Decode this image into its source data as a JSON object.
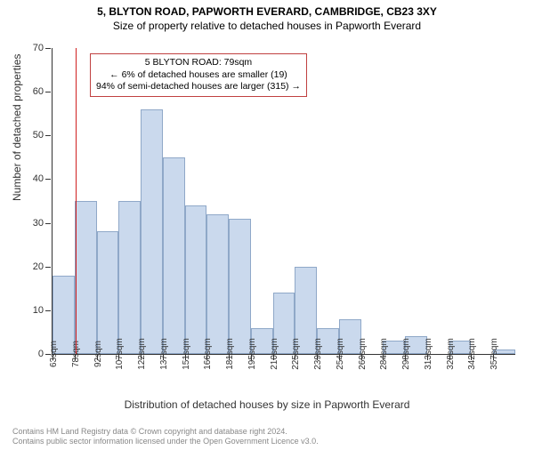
{
  "title_main": "5, BLYTON ROAD, PAPWORTH EVERARD, CAMBRIDGE, CB23 3XY",
  "title_sub": "Size of property relative to detached houses in Papworth Everard",
  "chart": {
    "type": "histogram",
    "ylabel": "Number of detached properties",
    "xlabel": "Distribution of detached houses by size in Papworth Everard",
    "y_ticks": [
      0,
      10,
      20,
      30,
      40,
      50,
      60,
      70
    ],
    "y_max": 70,
    "x_labels": [
      "63sqm",
      "78sqm",
      "92sqm",
      "107sqm",
      "122sqm",
      "137sqm",
      "151sqm",
      "166sqm",
      "181sqm",
      "195sqm",
      "210sqm",
      "225sqm",
      "239sqm",
      "254sqm",
      "269sqm",
      "284sqm",
      "298sqm",
      "313sqm",
      "328sqm",
      "342sqm",
      "357sqm"
    ],
    "values": [
      18,
      35,
      28,
      35,
      56,
      45,
      34,
      32,
      31,
      6,
      14,
      20,
      6,
      8,
      0,
      3,
      4,
      0,
      3,
      0,
      1
    ],
    "bar_fill": "#cad9ed",
    "bar_stroke": "#8fa8c8",
    "background": "#ffffff",
    "axis_color": "#333333",
    "marker": {
      "bin_index": 1,
      "color": "#d02020"
    },
    "annotation": {
      "lines": [
        "5 BLYTON ROAD: 79sqm",
        "← 6% of detached houses are smaller (19)",
        "94% of semi-detached houses are larger (315) →"
      ],
      "border_color": "#c04040"
    }
  },
  "footer_line1": "Contains HM Land Registry data © Crown copyright and database right 2024.",
  "footer_line2": "Contains public sector information licensed under the Open Government Licence v3.0."
}
